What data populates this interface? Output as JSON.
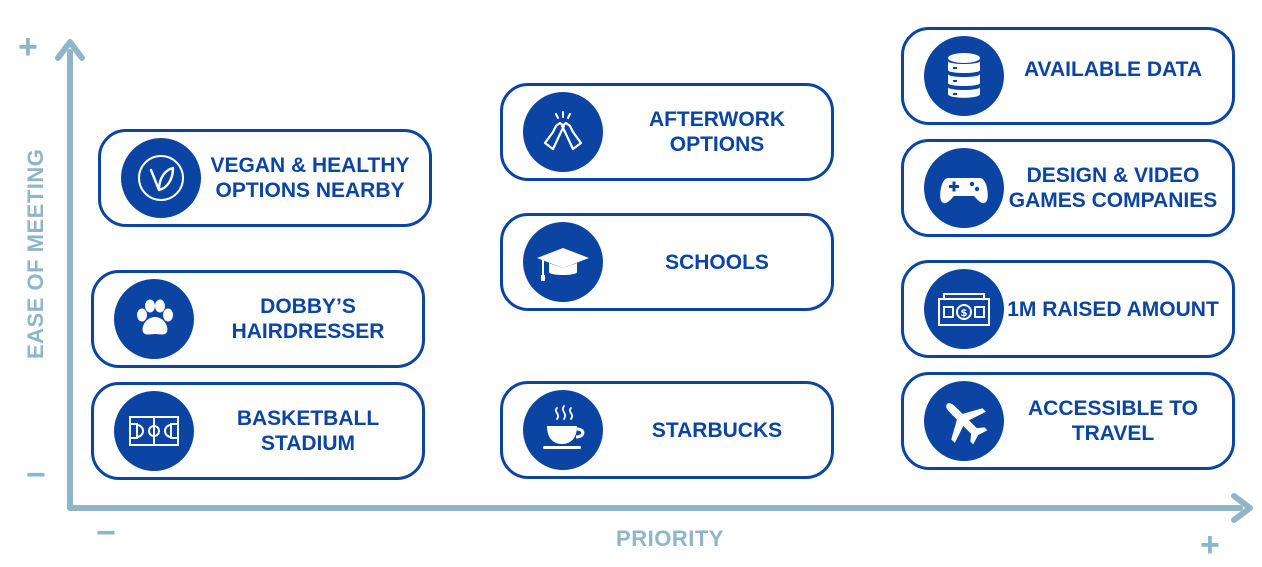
{
  "axes": {
    "x_title": "PRIORITY",
    "y_title": "EASE OF MEETING",
    "x_min_sign": "−",
    "x_max_sign": "+",
    "y_min_sign": "−",
    "y_max_sign": "+",
    "axis_color": "#8fb6c8"
  },
  "colors": {
    "accent": "#0b44a3",
    "axis": "#8fb6c8"
  },
  "cards": {
    "vegan": {
      "label": "VEGAN & HEALTHY OPTIONS NEARBY",
      "icon": "leaf-icon"
    },
    "dobby": {
      "label": "DOBBY’S HAIRDRESSER",
      "icon": "paw-icon"
    },
    "basketball": {
      "label": "BASKETBALL STADIUM",
      "icon": "basketball-court-icon"
    },
    "afterwork": {
      "label": "AFTERWORK OPTIONS",
      "icon": "beer-toast-icon"
    },
    "schools": {
      "label": "SCHOOLS",
      "icon": "graduation-cap-icon"
    },
    "starbucks": {
      "label": "STARBUCKS",
      "icon": "coffee-cup-icon"
    },
    "data": {
      "label": "AVAILABLE DATA",
      "icon": "database-icon"
    },
    "games": {
      "label": "DESIGN & VIDEO GAMES COMPANIES",
      "icon": "gamepad-icon"
    },
    "raised": {
      "label": "1M RAISED AMOUNT",
      "icon": "banknote-icon"
    },
    "travel": {
      "label": "ACCESSIBLE TO TRAVEL",
      "icon": "airplane-icon"
    }
  }
}
